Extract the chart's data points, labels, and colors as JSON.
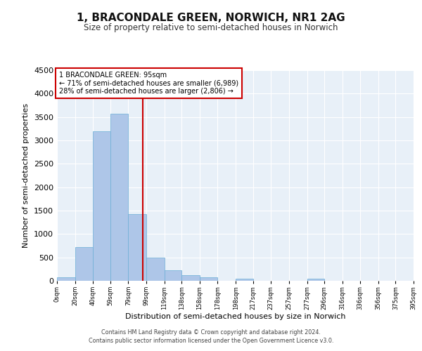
{
  "title": "1, BRACONDALE GREEN, NORWICH, NR1 2AG",
  "subtitle": "Size of property relative to semi-detached houses in Norwich",
  "xlabel": "Distribution of semi-detached houses by size in Norwich",
  "ylabel": "Number of semi-detached properties",
  "property_label": "1 BRACONDALE GREEN: 95sqm",
  "pct_smaller": 71,
  "count_smaller": "6,989",
  "pct_larger": 28,
  "count_larger": "2,806",
  "bin_edges": [
    0,
    20,
    40,
    59,
    79,
    99,
    119,
    138,
    158,
    178,
    198,
    217,
    237,
    257,
    277,
    296,
    316,
    336,
    356,
    375,
    395
  ],
  "bin_labels": [
    "0sqm",
    "20sqm",
    "40sqm",
    "59sqm",
    "79sqm",
    "99sqm",
    "119sqm",
    "138sqm",
    "158sqm",
    "178sqm",
    "198sqm",
    "217sqm",
    "237sqm",
    "257sqm",
    "277sqm",
    "296sqm",
    "316sqm",
    "336sqm",
    "356sqm",
    "375sqm",
    "395sqm"
  ],
  "counts": [
    75,
    725,
    3200,
    3575,
    1425,
    500,
    225,
    115,
    75,
    0,
    50,
    0,
    0,
    0,
    50,
    0,
    0,
    0,
    0,
    0
  ],
  "bar_color": "#aec6e8",
  "bar_edge_color": "#6aaed6",
  "vline_color": "#cc0000",
  "vline_x": 95,
  "ylim": [
    0,
    4500
  ],
  "yticks": [
    0,
    500,
    1000,
    1500,
    2000,
    2500,
    3000,
    3500,
    4000,
    4500
  ],
  "bg_color": "#e8f0f8",
  "grid_color": "#ffffff",
  "annotation_box_color": "#cc0000",
  "footer1": "Contains HM Land Registry data © Crown copyright and database right 2024.",
  "footer2": "Contains public sector information licensed under the Open Government Licence v3.0."
}
